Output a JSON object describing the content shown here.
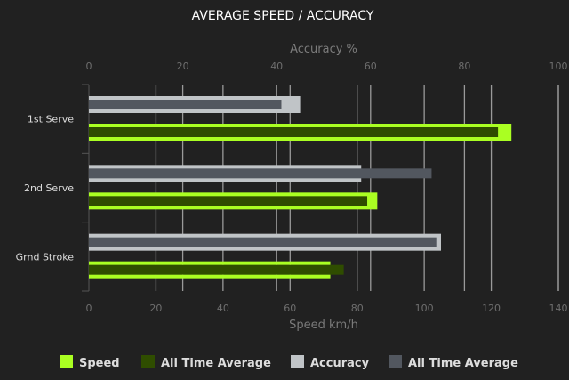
{
  "chart_data": {
    "type": "bar",
    "orientation": "horizontal",
    "title": "AVERAGE SPEED / ACCURACY",
    "categories": [
      "1st Serve",
      "2nd Serve",
      "Grnd Stroke"
    ],
    "x_top": {
      "label": "Accuracy %",
      "range": [
        0,
        100
      ],
      "ticks": [
        0,
        20,
        40,
        60,
        80,
        100
      ]
    },
    "x_bottom": {
      "label": "Speed km/h",
      "range": [
        0,
        140
      ],
      "ticks": [
        0,
        20,
        40,
        60,
        80,
        100,
        120,
        140
      ]
    },
    "grid": true,
    "legend_position": "bottom",
    "series": [
      {
        "name": "Speed",
        "axis": "speed",
        "color": "#aaff22",
        "values": [
          126,
          86,
          72
        ]
      },
      {
        "name": "All Time Average",
        "axis": "speed",
        "color": "#2f4d00",
        "values": [
          122,
          83,
          76
        ]
      },
      {
        "name": "Accuracy",
        "axis": "accuracy",
        "color": "#c0c4c7",
        "values": [
          45,
          58,
          75
        ]
      },
      {
        "name": "All Time Average",
        "axis": "accuracy",
        "color": "#52575f",
        "values": [
          41,
          73,
          74
        ]
      }
    ]
  }
}
